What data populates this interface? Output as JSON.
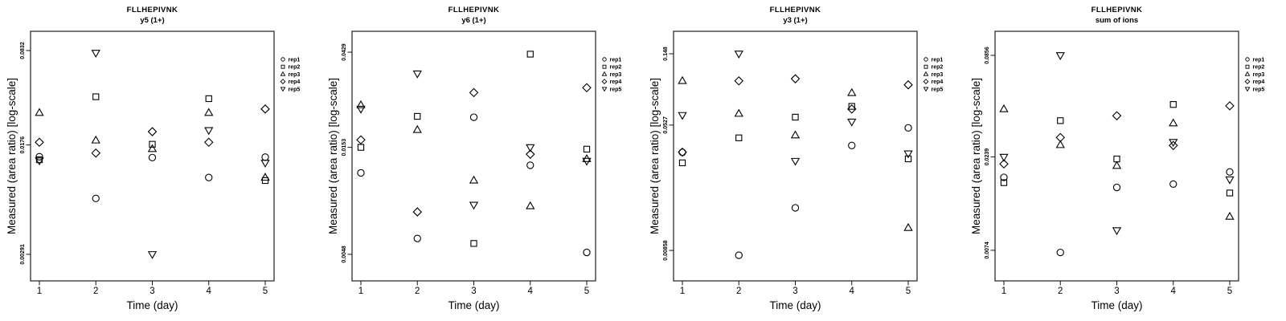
{
  "figure": {
    "background": "#ffffff",
    "plot_border_color": "#3f3f3f",
    "axis_color": "#111111",
    "marker_color": "#000000",
    "text_color": "#000000"
  },
  "legend": {
    "position": "right",
    "items": [
      {
        "label": "rep1",
        "marker": "circle-icon"
      },
      {
        "label": "rep2",
        "marker": "square-icon"
      },
      {
        "label": "rep3",
        "marker": "triangle-up-icon"
      },
      {
        "label": "rep4",
        "marker": "diamond-icon"
      },
      {
        "label": "rep5",
        "marker": "triangle-down-icon"
      }
    ]
  },
  "chart_data": [
    {
      "type": "scatter",
      "title": "FLLHEPIVNK",
      "subtitle": "y5 (1+)",
      "xlabel": "Time (day)",
      "ylabel": "Measured (area ratio) [log-scale]",
      "y_scale": "log",
      "grid": false,
      "x_ticks": [
        "1",
        "2",
        "3",
        "4",
        "5"
      ],
      "y_ticks": [
        {
          "value": 0.0832,
          "label": "0.0832"
        },
        {
          "value": 0.0176,
          "label": "0.0176"
        },
        {
          "value": 0.00291,
          "label": "0.00291"
        }
      ],
      "ylim": [
        0.00188,
        0.1142
      ],
      "x": [
        1,
        2,
        3,
        4,
        5
      ],
      "series": [
        {
          "name": "rep1",
          "marker": "circle",
          "values": [
            0.0145,
            0.0073,
            0.0143,
            0.0103,
            0.0144
          ]
        },
        {
          "name": "rep2",
          "marker": "square",
          "values": [
            0.0138,
            0.0389,
            0.0178,
            0.0377,
            0.0098
          ]
        },
        {
          "name": "rep3",
          "marker": "triangle-up",
          "values": [
            0.0299,
            0.019,
            0.0165,
            0.0299,
            0.0103
          ]
        },
        {
          "name": "rep4",
          "marker": "diamond",
          "values": [
            0.0184,
            0.0154,
            0.0219,
            0.0184,
            0.0318
          ]
        },
        {
          "name": "rep5",
          "marker": "triangle-down",
          "values": [
            0.0136,
            0.08,
            0.00291,
            0.0224,
            0.0131
          ]
        }
      ]
    },
    {
      "type": "scatter",
      "title": "FLLHEPIVNK",
      "subtitle": "y6 (1+)",
      "xlabel": "Time (day)",
      "ylabel": "Measured (area ratio) [log-scale]",
      "y_scale": "log",
      "grid": false,
      "x_ticks": [
        "1",
        "2",
        "3",
        "4",
        "5"
      ],
      "y_ticks": [
        {
          "value": 0.0429,
          "label": "0.0429"
        },
        {
          "value": 0.0153,
          "label": "0.0153"
        },
        {
          "value": 0.0048,
          "label": "0.0048"
        }
      ],
      "ylim": [
        0.0036,
        0.0538
      ],
      "x": [
        1,
        2,
        3,
        4,
        5
      ],
      "series": [
        {
          "name": "rep1",
          "marker": "circle",
          "values": [
            0.0116,
            0.0057,
            0.0212,
            0.0126,
            0.0049
          ]
        },
        {
          "name": "rep2",
          "marker": "square",
          "values": [
            0.0153,
            0.0214,
            0.0054,
            0.042,
            0.015
          ]
        },
        {
          "name": "rep3",
          "marker": "triangle-up",
          "values": [
            0.0242,
            0.0185,
            0.0107,
            0.0081,
            0.0135
          ]
        },
        {
          "name": "rep4",
          "marker": "diamond",
          "values": [
            0.0166,
            0.0076,
            0.0277,
            0.0142,
            0.0292
          ]
        },
        {
          "name": "rep5",
          "marker": "triangle-down",
          "values": [
            0.0232,
            0.034,
            0.0082,
            0.0153,
            0.0132
          ]
        }
      ]
    },
    {
      "type": "scatter",
      "title": "FLLHEPIVNK",
      "subtitle": "y3 (1+)",
      "xlabel": "Time (day)",
      "ylabel": "Measured (area ratio) [log-scale]",
      "y_scale": "log",
      "grid": false,
      "x_ticks": [
        "1",
        "2",
        "3",
        "4",
        "5"
      ],
      "y_ticks": [
        {
          "value": 0.148,
          "label": "0.148"
        },
        {
          "value": 0.0527,
          "label": "0.0527"
        },
        {
          "value": 0.00858,
          "label": "0.00858"
        }
      ],
      "ylim": [
        0.00552,
        0.2049
      ],
      "x": [
        1,
        2,
        3,
        4,
        5
      ],
      "series": [
        {
          "name": "rep1",
          "marker": "circle",
          "values": [
            0.0355,
            0.008,
            0.0159,
            0.0392,
            0.0506
          ]
        },
        {
          "name": "rep2",
          "marker": "square",
          "values": [
            0.0305,
            0.0438,
            0.0591,
            0.0691,
            0.0323
          ]
        },
        {
          "name": "rep3",
          "marker": "triangle-up",
          "values": [
            0.1,
            0.0622,
            0.0455,
            0.084,
            0.0119
          ]
        },
        {
          "name": "rep4",
          "marker": "diamond",
          "values": [
            0.0356,
            0.1,
            0.103,
            0.0665,
            0.0944
          ]
        },
        {
          "name": "rep5",
          "marker": "triangle-down",
          "values": [
            0.0608,
            0.148,
            0.0313,
            0.0553,
            0.0349
          ]
        }
      ]
    },
    {
      "type": "scatter",
      "title": "FLLHEPIVNK",
      "subtitle": "sum of ions",
      "xlabel": "Time (day)",
      "ylabel": "Measured (area ratio) [log-scale]",
      "y_scale": "log",
      "grid": false,
      "x_ticks": [
        "1",
        "2",
        "3",
        "4",
        "5"
      ],
      "y_ticks": [
        {
          "value": 0.0856,
          "label": "0.0856"
        },
        {
          "value": 0.0239,
          "label": "0.0239"
        },
        {
          "value": 0.0074,
          "label": "0.0074"
        }
      ],
      "ylim": [
        0.00504,
        0.1158
      ],
      "x": [
        1,
        2,
        3,
        4,
        5
      ],
      "series": [
        {
          "name": "rep1",
          "marker": "circle",
          "values": [
            0.0185,
            0.0072,
            0.0163,
            0.017,
            0.0198
          ]
        },
        {
          "name": "rep2",
          "marker": "square",
          "values": [
            0.0173,
            0.0377,
            0.0233,
            0.0462,
            0.0152
          ]
        },
        {
          "name": "rep3",
          "marker": "triangle-up",
          "values": [
            0.0436,
            0.0278,
            0.0214,
            0.0365,
            0.0113
          ]
        },
        {
          "name": "rep4",
          "marker": "diamond",
          "values": [
            0.0219,
            0.0305,
            0.0401,
            0.0276,
            0.0454
          ]
        },
        {
          "name": "rep5",
          "marker": "triangle-down",
          "values": [
            0.0239,
            0.0856,
            0.0095,
            0.0288,
            0.018
          ]
        }
      ]
    }
  ]
}
